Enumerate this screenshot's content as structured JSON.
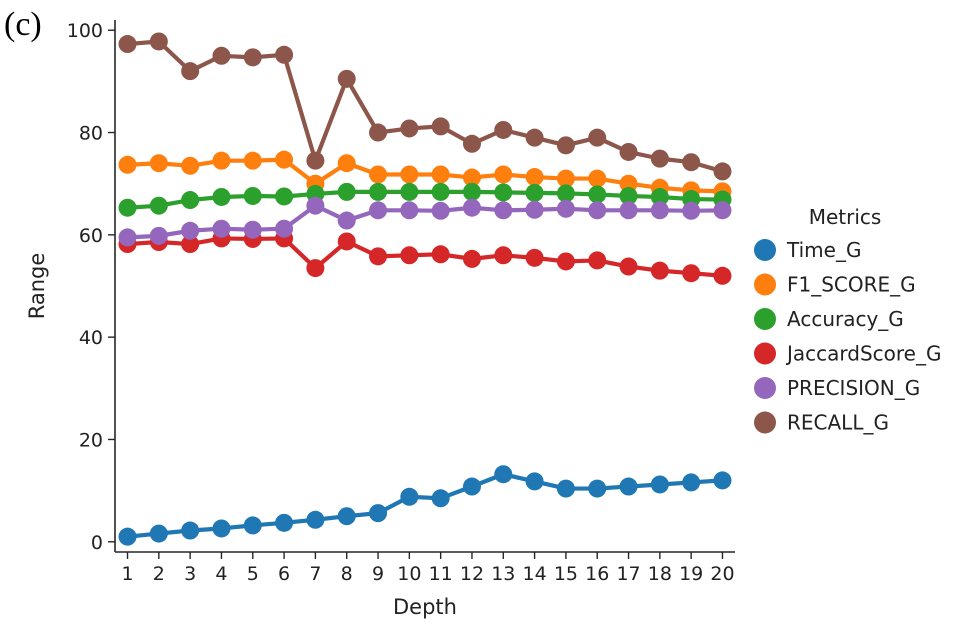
{
  "panel_label": "(c)",
  "chart_data": {
    "type": "line",
    "title": "",
    "xlabel": "Depth",
    "ylabel": "Range",
    "x": [
      1,
      2,
      3,
      4,
      5,
      6,
      7,
      8,
      9,
      10,
      11,
      12,
      13,
      14,
      15,
      16,
      17,
      18,
      19,
      20
    ],
    "xlim": [
      0.6,
      20.4
    ],
    "ylim": [
      -2,
      102
    ],
    "yticks": [
      0,
      20,
      40,
      60,
      80,
      100
    ],
    "legend_title": "Metrics",
    "legend_position": "right",
    "series": [
      {
        "name": "Time_G",
        "color": "#1f77b4",
        "values": [
          1,
          1.6,
          2.2,
          2.6,
          3.2,
          3.7,
          4.3,
          5,
          5.6,
          8.8,
          8.5,
          10.8,
          13.2,
          11.8,
          10.4,
          10.4,
          10.8,
          11.2,
          11.6,
          12
        ]
      },
      {
        "name": "F1_SCORE_G",
        "color": "#ff7f0e",
        "values": [
          73.7,
          74,
          73.5,
          74.5,
          74.5,
          74.7,
          70,
          74,
          71.8,
          71.8,
          71.8,
          71.2,
          71.8,
          71.3,
          71,
          71,
          70,
          69.2,
          68.7,
          68.5
        ]
      },
      {
        "name": "Accuracy_G",
        "color": "#2ca02c",
        "values": [
          65.3,
          65.7,
          66.8,
          67.4,
          67.6,
          67.5,
          68,
          68.4,
          68.4,
          68.4,
          68.4,
          68.4,
          68.3,
          68.2,
          68.1,
          67.9,
          67.6,
          67.4,
          67,
          66.9
        ]
      },
      {
        "name": "JaccardScore_G",
        "color": "#d62728",
        "values": [
          58.2,
          58.6,
          58.2,
          59.3,
          59.2,
          59.3,
          53.5,
          58.7,
          55.8,
          56,
          56.2,
          55.3,
          56,
          55.5,
          54.8,
          55,
          53.8,
          53,
          52.5,
          52
        ]
      },
      {
        "name": "PRECISION_G",
        "color": "#9467bd",
        "values": [
          59.5,
          59.8,
          60.8,
          61.2,
          61,
          61.2,
          65.7,
          62.8,
          64.8,
          64.8,
          64.7,
          65.3,
          64.8,
          64.9,
          65.1,
          64.8,
          64.8,
          64.8,
          64.7,
          64.8
        ]
      },
      {
        "name": "RECALL_G",
        "color": "#8c564b",
        "values": [
          97.3,
          97.8,
          92,
          95,
          94.7,
          95.2,
          74.5,
          90.5,
          80,
          80.8,
          81.2,
          77.8,
          80.5,
          79,
          77.5,
          79,
          76.2,
          74.9,
          74.2,
          72.4
        ]
      }
    ]
  }
}
